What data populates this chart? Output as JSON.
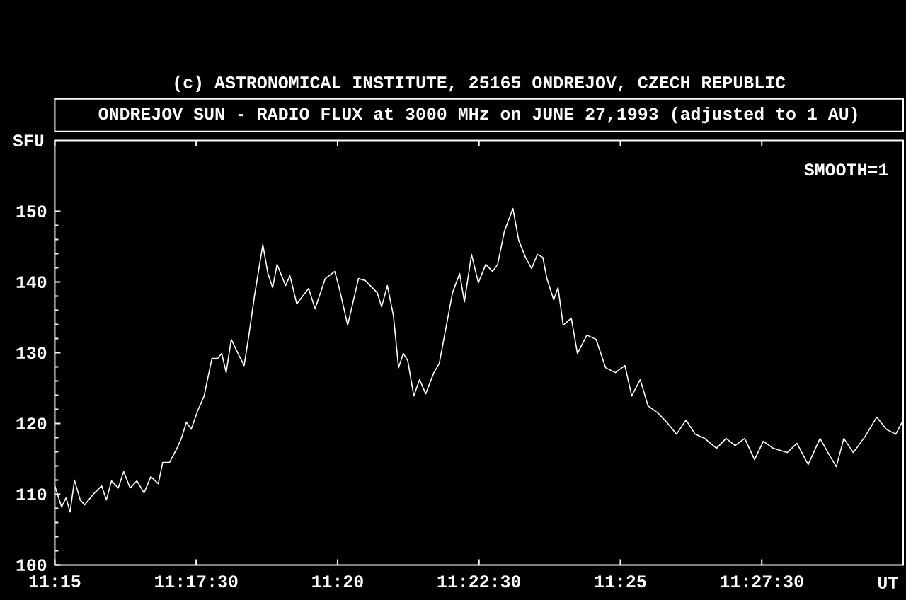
{
  "chart_data": {
    "type": "line",
    "title": "ONDREJOV SUN - RADIO FLUX at 3000 MHz on JUNE 27,1993 (adjusted to 1 AU)",
    "annotations": [
      "(c) ASTRONOMICAL INSTITUTE, 25165 ONDREJOV, CZECH REPUBLIC",
      "SMOOTH=1"
    ],
    "xlabel": "UT",
    "ylabel": "SFU",
    "color": "#ffffff",
    "xlim": [
      11.25,
      11.5
    ],
    "ylim": [
      100,
      160
    ],
    "xticks": [
      {
        "value": 11.25,
        "label": "11:15"
      },
      {
        "value": 11.291667,
        "label": "11:17:30"
      },
      {
        "value": 11.333333,
        "label": "11:20"
      },
      {
        "value": 11.375,
        "label": "11:22:30"
      },
      {
        "value": 11.416667,
        "label": "11:25"
      },
      {
        "value": 11.458333,
        "label": "11:27:30"
      }
    ],
    "yticks": [
      100,
      110,
      120,
      130,
      140,
      150
    ],
    "x": [
      11.25,
      11.252,
      11.2533,
      11.2545,
      11.2558,
      11.2575,
      11.2588,
      11.2617,
      11.2638,
      11.2652,
      11.2667,
      11.2687,
      11.2703,
      11.2722,
      11.2742,
      11.2763,
      11.2783,
      11.2805,
      11.2818,
      11.2838,
      11.286,
      11.2873,
      11.2888,
      11.2902,
      11.2922,
      11.294,
      11.2963,
      11.298,
      11.2992,
      11.3005,
      11.302,
      11.304,
      11.3058,
      11.3072,
      11.3088,
      11.3113,
      11.3128,
      11.3142,
      11.3155,
      11.318,
      11.3193,
      11.3213,
      11.3248,
      11.3267,
      11.3297,
      11.3325,
      11.3338,
      11.3363,
      11.3395,
      11.3415,
      11.345,
      11.3463,
      11.348,
      11.3498,
      11.3513,
      11.3527,
      11.354,
      11.3558,
      11.3575,
      11.3593,
      11.3617,
      11.3633,
      11.3658,
      11.3672,
      11.3693,
      11.3707,
      11.3728,
      11.3748,
      11.377,
      11.379,
      11.3805,
      11.3825,
      11.385,
      11.3867,
      11.3887,
      11.3905,
      11.3922,
      11.3938,
      11.395,
      11.397,
      11.3983,
      11.3998,
      11.4022,
      11.404,
      11.4068,
      11.4095,
      11.4123,
      11.4152,
      11.418,
      11.42,
      11.4225,
      11.4248,
      11.4277,
      11.4303,
      11.4332,
      11.436,
      11.4387,
      11.4415,
      11.445,
      11.4478,
      11.4505,
      11.4533,
      11.4562,
      11.4588,
      11.4617,
      11.4658,
      11.4687,
      11.472,
      11.4755,
      11.4783,
      11.4803,
      11.4825,
      11.4853,
      11.4888,
      11.4922,
      11.495,
      11.4978,
      11.5
    ],
    "values": [
      111.2,
      108.2,
      109.5,
      107.5,
      112,
      109.2,
      108.5,
      110.2,
      111.2,
      109.2,
      111.9,
      110.9,
      113.2,
      110.9,
      111.9,
      110.2,
      112.5,
      111.5,
      114.5,
      114.5,
      116.5,
      117.9,
      120.2,
      119.2,
      121.9,
      123.9,
      129.2,
      129.2,
      129.9,
      127.2,
      131.9,
      129.9,
      128.2,
      132.5,
      137.9,
      145.3,
      141.2,
      139.2,
      142.5,
      139.5,
      140.9,
      136.9,
      139.1,
      136.2,
      140.5,
      141.5,
      139.2,
      133.9,
      140.5,
      140.2,
      138.5,
      136.5,
      139.5,
      135.2,
      127.9,
      129.9,
      128.9,
      123.9,
      126.2,
      124.2,
      127.2,
      128.5,
      134.9,
      138.5,
      141.2,
      137.2,
      143.9,
      139.9,
      142.5,
      141.5,
      142.5,
      147.2,
      150.4,
      145.9,
      143.5,
      141.9,
      143.9,
      143.5,
      140.5,
      137.5,
      139.2,
      133.9,
      134.9,
      129.9,
      132.5,
      131.9,
      127.9,
      127.2,
      128.2,
      123.9,
      126.2,
      122.5,
      121.5,
      120.2,
      118.5,
      120.5,
      118.5,
      117.9,
      116.5,
      117.9,
      116.9,
      117.9,
      114.9,
      117.5,
      116.5,
      115.9,
      117.2,
      114.2,
      117.9,
      115.5,
      113.9,
      117.9,
      115.9,
      118.2,
      120.9,
      119.2,
      118.5,
      120.5
    ]
  }
}
